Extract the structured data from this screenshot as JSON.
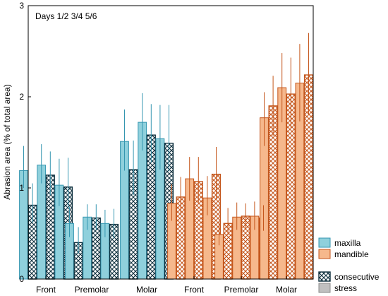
{
  "chart_data": {
    "type": "bar",
    "annotation": "Days 1/2 3/4 5/6",
    "ylabel": "Abrasion area (% of total area)",
    "xlabel": "",
    "ylim": [
      0,
      3
    ],
    "yticks": [
      "0",
      "1",
      "2",
      "3"
    ],
    "grid": false,
    "legend_position": "bottom-right",
    "legend": [
      {
        "label": "maxilla",
        "swatch": "maxilla"
      },
      {
        "label": "mandible",
        "swatch": "mandible"
      },
      {
        "label": "consecutive",
        "swatch": "consecutive"
      },
      {
        "label": "stress",
        "swatch": "stress"
      }
    ],
    "colors": {
      "maxilla_fill": "#8fd0dc",
      "maxilla_edge": "#3596b0",
      "mandible_fill": "#f6b88c",
      "mandible_edge": "#c4561c",
      "stress_fill": "#c0c0c0",
      "hatch_dark": "#0d2f3d"
    },
    "bar_order": [
      "stress",
      "consecutive",
      "stress",
      "consecutive",
      "stress",
      "consecutive"
    ],
    "groups": [
      {
        "jaw": "maxilla",
        "tooth": "Front",
        "values": [
          1.19,
          0.81,
          1.25,
          1.14,
          1.03,
          1.01
        ],
        "errors": [
          [
            1.0,
            1.46
          ],
          [
            0.62,
            1.05
          ],
          [
            1.05,
            1.48
          ],
          [
            0.92,
            1.4
          ],
          [
            0.8,
            1.32
          ],
          [
            0.78,
            1.33
          ]
        ]
      },
      {
        "jaw": "maxilla",
        "tooth": "Premolar",
        "values": [
          0.61,
          0.4,
          0.68,
          0.67,
          0.61,
          0.6
        ],
        "errors": [
          [
            0.46,
            0.79
          ],
          [
            0.28,
            0.57
          ],
          [
            0.54,
            0.82
          ],
          [
            0.54,
            0.82
          ],
          [
            0.46,
            0.76
          ],
          [
            0.45,
            0.77
          ]
        ]
      },
      {
        "jaw": "maxilla",
        "tooth": "Molar",
        "values": [
          1.51,
          1.2,
          1.72,
          1.58,
          1.54,
          1.49
        ],
        "errors": [
          [
            1.19,
            1.86
          ],
          [
            0.92,
            1.52
          ],
          [
            1.41,
            2.04
          ],
          [
            1.28,
            1.92
          ],
          [
            1.2,
            1.91
          ],
          [
            1.18,
            1.91
          ]
        ]
      },
      {
        "jaw": "mandible",
        "tooth": "Front",
        "values": [
          0.83,
          0.9,
          1.1,
          1.07,
          0.89,
          1.15
        ],
        "errors": [
          [
            0.64,
            1.04
          ],
          [
            0.71,
            1.12
          ],
          [
            0.86,
            1.34
          ],
          [
            0.84,
            1.34
          ],
          [
            0.7,
            1.13
          ],
          [
            0.88,
            1.45
          ]
        ]
      },
      {
        "jaw": "mandible",
        "tooth": "Premolar",
        "values": [
          0.49,
          0.61,
          0.68,
          0.69,
          0.69,
          0.67
        ],
        "errors": [
          [
            0.37,
            0.62
          ],
          [
            0.48,
            0.78
          ],
          [
            0.54,
            0.84
          ],
          [
            0.55,
            0.83
          ],
          [
            0.54,
            0.85
          ],
          [
            0.53,
            0.81
          ]
        ]
      },
      {
        "jaw": "mandible",
        "tooth": "Molar",
        "values": [
          1.77,
          1.9,
          2.1,
          2.03,
          2.15,
          2.24
        ],
        "errors": [
          [
            1.46,
            2.05
          ],
          [
            1.57,
            2.23
          ],
          [
            1.72,
            2.48
          ],
          [
            1.66,
            2.43
          ],
          [
            1.73,
            2.58
          ],
          [
            1.8,
            2.7
          ]
        ]
      }
    ]
  }
}
